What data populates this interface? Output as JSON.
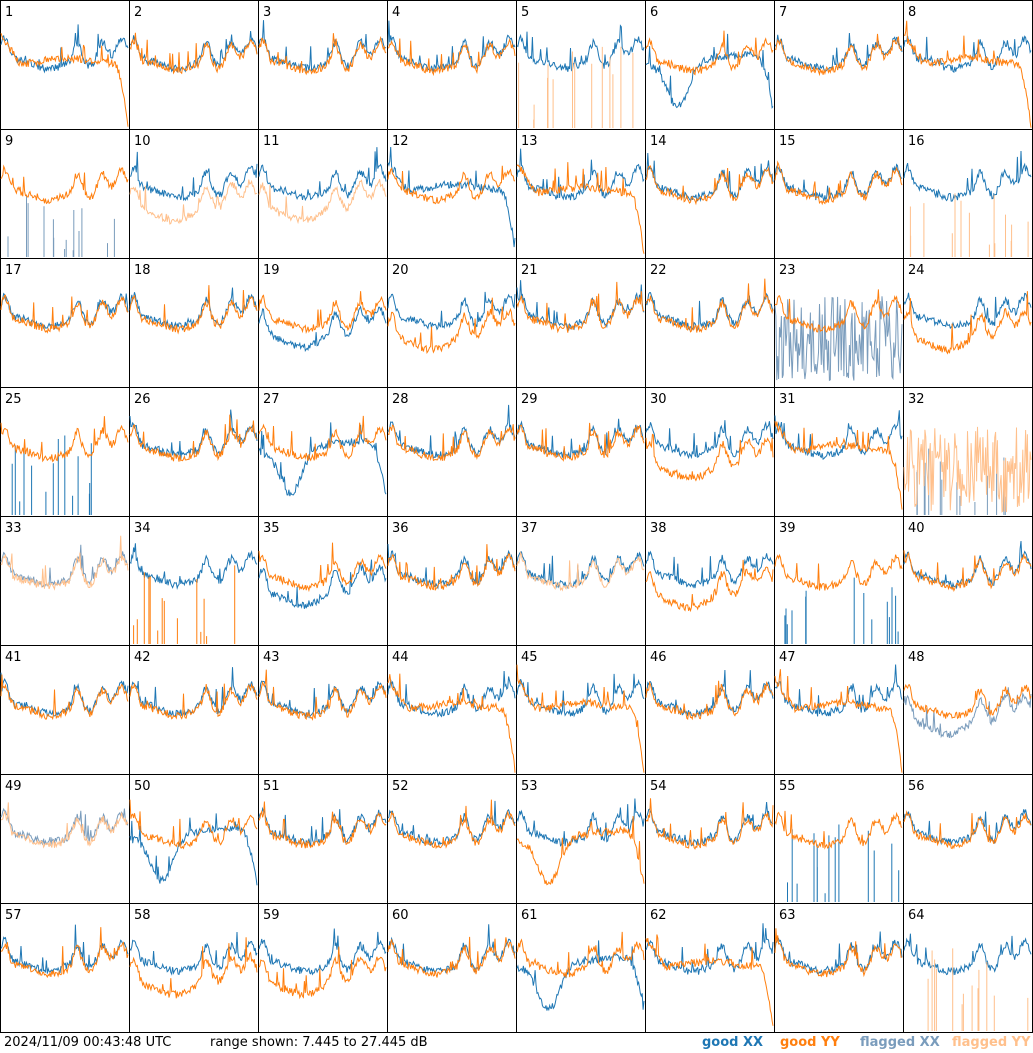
{
  "chart_data": {
    "type": "line",
    "layout": "small-multiples grid, 8 columns x 8 rows",
    "timestamp": "2024/11/09 00:43:48 UTC",
    "range_text": "range shown: 7.445 to 27.445 dB",
    "ylim": [
      7.445,
      27.445
    ],
    "yunit": "dB",
    "legend": [
      {
        "key": "good_xx",
        "label": "good XX",
        "color": "#1f77b4"
      },
      {
        "key": "good_yy",
        "label": "good YY",
        "color": "#ff7f0e"
      },
      {
        "key": "flagged_xx",
        "label": "flagged XX",
        "color": "#7a9cbc"
      },
      {
        "key": "flagged_yy",
        "label": "flagged YY",
        "color": "#ffc08c"
      }
    ],
    "legend_placement": "bottom-right",
    "tiles": [
      {
        "label": "1",
        "xx": "good",
        "yy": "good",
        "xx_shape": "normal",
        "yy_shape": "rolloff"
      },
      {
        "label": "2",
        "xx": "good",
        "yy": "good",
        "xx_shape": "normal",
        "yy_shape": "normal"
      },
      {
        "label": "3",
        "xx": "good",
        "yy": "good",
        "xx_shape": "normal",
        "yy_shape": "normal"
      },
      {
        "label": "4",
        "xx": "good",
        "yy": "good",
        "xx_shape": "normal",
        "yy_shape": "normal"
      },
      {
        "label": "5",
        "xx": "good",
        "yy": "flagged",
        "xx_shape": "normal",
        "yy_shape": "spikes"
      },
      {
        "label": "6",
        "xx": "good",
        "yy": "good",
        "xx_shape": "dip",
        "yy_shape": "normal"
      },
      {
        "label": "7",
        "xx": "good",
        "yy": "good",
        "xx_shape": "normal",
        "yy_shape": "normal"
      },
      {
        "label": "8",
        "xx": "good",
        "yy": "good",
        "xx_shape": "normal",
        "yy_shape": "rolloff"
      },
      {
        "label": "9",
        "xx": "flagged",
        "yy": "good",
        "xx_shape": "spikes",
        "yy_shape": "normal"
      },
      {
        "label": "10",
        "xx": "good",
        "yy": "flagged",
        "xx_shape": "normal",
        "yy_shape": "low"
      },
      {
        "label": "11",
        "xx": "good",
        "yy": "flagged",
        "xx_shape": "normal",
        "yy_shape": "low"
      },
      {
        "label": "12",
        "xx": "good",
        "yy": "good",
        "xx_shape": "rolloff",
        "yy_shape": "normal"
      },
      {
        "label": "13",
        "xx": "good",
        "yy": "good",
        "xx_shape": "normal",
        "yy_shape": "rolloff"
      },
      {
        "label": "14",
        "xx": "good",
        "yy": "good",
        "xx_shape": "normal",
        "yy_shape": "normal"
      },
      {
        "label": "15",
        "xx": "good",
        "yy": "good",
        "xx_shape": "normal",
        "yy_shape": "normal"
      },
      {
        "label": "16",
        "xx": "good",
        "yy": "flagged",
        "xx_shape": "normal",
        "yy_shape": "spikes"
      },
      {
        "label": "17",
        "xx": "good",
        "yy": "good",
        "xx_shape": "normal",
        "yy_shape": "normal"
      },
      {
        "label": "18",
        "xx": "good",
        "yy": "good",
        "xx_shape": "normal",
        "yy_shape": "normal"
      },
      {
        "label": "19",
        "xx": "good",
        "yy": "good",
        "xx_shape": "low",
        "yy_shape": "normal"
      },
      {
        "label": "20",
        "xx": "good",
        "yy": "good",
        "xx_shape": "normal",
        "yy_shape": "low"
      },
      {
        "label": "21",
        "xx": "good",
        "yy": "good",
        "xx_shape": "normal",
        "yy_shape": "normal"
      },
      {
        "label": "22",
        "xx": "good",
        "yy": "good",
        "xx_shape": "normal",
        "yy_shape": "normal"
      },
      {
        "label": "23",
        "xx": "flagged",
        "yy": "good",
        "xx_shape": "noisy",
        "yy_shape": "normal"
      },
      {
        "label": "24",
        "xx": "good",
        "yy": "good",
        "xx_shape": "normal",
        "yy_shape": "low"
      },
      {
        "label": "25",
        "xx": "good",
        "yy": "good",
        "xx_shape": "spikes",
        "yy_shape": "normal"
      },
      {
        "label": "26",
        "xx": "good",
        "yy": "good",
        "xx_shape": "normal",
        "yy_shape": "normal"
      },
      {
        "label": "27",
        "xx": "good",
        "yy": "good",
        "xx_shape": "dip",
        "yy_shape": "normal"
      },
      {
        "label": "28",
        "xx": "good",
        "yy": "good",
        "xx_shape": "normal",
        "yy_shape": "normal"
      },
      {
        "label": "29",
        "xx": "good",
        "yy": "good",
        "xx_shape": "normal",
        "yy_shape": "normal"
      },
      {
        "label": "30",
        "xx": "good",
        "yy": "good",
        "xx_shape": "normal",
        "yy_shape": "low"
      },
      {
        "label": "31",
        "xx": "good",
        "yy": "good",
        "xx_shape": "normal",
        "yy_shape": "rolloff"
      },
      {
        "label": "32",
        "xx": "flagged",
        "yy": "flagged",
        "xx_shape": "spikes",
        "yy_shape": "noisy"
      },
      {
        "label": "33",
        "xx": "flagged",
        "yy": "flagged",
        "xx_shape": "normal",
        "yy_shape": "normal"
      },
      {
        "label": "34",
        "xx": "good",
        "yy": "good",
        "xx_shape": "normal",
        "yy_shape": "spikes"
      },
      {
        "label": "35",
        "xx": "good",
        "yy": "good",
        "xx_shape": "low",
        "yy_shape": "normal"
      },
      {
        "label": "36",
        "xx": "good",
        "yy": "good",
        "xx_shape": "normal",
        "yy_shape": "normal"
      },
      {
        "label": "37",
        "xx": "good",
        "yy": "flagged",
        "xx_shape": "normal",
        "yy_shape": "normal"
      },
      {
        "label": "38",
        "xx": "good",
        "yy": "good",
        "xx_shape": "normal",
        "yy_shape": "low"
      },
      {
        "label": "39",
        "xx": "good",
        "yy": "good",
        "xx_shape": "spikes",
        "yy_shape": "normal"
      },
      {
        "label": "40",
        "xx": "good",
        "yy": "good",
        "xx_shape": "normal",
        "yy_shape": "normal"
      },
      {
        "label": "41",
        "xx": "good",
        "yy": "good",
        "xx_shape": "normal",
        "yy_shape": "normal"
      },
      {
        "label": "42",
        "xx": "good",
        "yy": "good",
        "xx_shape": "normal",
        "yy_shape": "normal"
      },
      {
        "label": "43",
        "xx": "good",
        "yy": "good",
        "xx_shape": "normal",
        "yy_shape": "normal"
      },
      {
        "label": "44",
        "xx": "good",
        "yy": "good",
        "xx_shape": "normal",
        "yy_shape": "rolloff"
      },
      {
        "label": "45",
        "xx": "good",
        "yy": "good",
        "xx_shape": "normal",
        "yy_shape": "rolloff"
      },
      {
        "label": "46",
        "xx": "good",
        "yy": "good",
        "xx_shape": "normal",
        "yy_shape": "normal"
      },
      {
        "label": "47",
        "xx": "good",
        "yy": "good",
        "xx_shape": "normal",
        "yy_shape": "rolloff"
      },
      {
        "label": "48",
        "xx": "flagged",
        "yy": "good",
        "xx_shape": "low",
        "yy_shape": "normal"
      },
      {
        "label": "49",
        "xx": "flagged",
        "yy": "flagged",
        "xx_shape": "normal",
        "yy_shape": "normal"
      },
      {
        "label": "50",
        "xx": "good",
        "yy": "good",
        "xx_shape": "dip",
        "yy_shape": "normal"
      },
      {
        "label": "51",
        "xx": "good",
        "yy": "good",
        "xx_shape": "normal",
        "yy_shape": "normal"
      },
      {
        "label": "52",
        "xx": "good",
        "yy": "good",
        "xx_shape": "normal",
        "yy_shape": "normal"
      },
      {
        "label": "53",
        "xx": "good",
        "yy": "good",
        "xx_shape": "normal",
        "yy_shape": "dip"
      },
      {
        "label": "54",
        "xx": "good",
        "yy": "good",
        "xx_shape": "normal",
        "yy_shape": "normal"
      },
      {
        "label": "55",
        "xx": "good",
        "yy": "good",
        "xx_shape": "spikes",
        "yy_shape": "normal"
      },
      {
        "label": "56",
        "xx": "good",
        "yy": "good",
        "xx_shape": "normal",
        "yy_shape": "normal"
      },
      {
        "label": "57",
        "xx": "good",
        "yy": "good",
        "xx_shape": "normal",
        "yy_shape": "normal"
      },
      {
        "label": "58",
        "xx": "good",
        "yy": "good",
        "xx_shape": "normal",
        "yy_shape": "low"
      },
      {
        "label": "59",
        "xx": "good",
        "yy": "good",
        "xx_shape": "normal",
        "yy_shape": "low"
      },
      {
        "label": "60",
        "xx": "good",
        "yy": "good",
        "xx_shape": "normal",
        "yy_shape": "normal"
      },
      {
        "label": "61",
        "xx": "good",
        "yy": "good",
        "xx_shape": "dip",
        "yy_shape": "normal"
      },
      {
        "label": "62",
        "xx": "good",
        "yy": "good",
        "xx_shape": "normal",
        "yy_shape": "rolloff"
      },
      {
        "label": "63",
        "xx": "good",
        "yy": "good",
        "xx_shape": "normal",
        "yy_shape": "normal"
      },
      {
        "label": "64",
        "xx": "good",
        "yy": "flagged",
        "xx_shape": "normal",
        "yy_shape": "spikes"
      }
    ]
  }
}
